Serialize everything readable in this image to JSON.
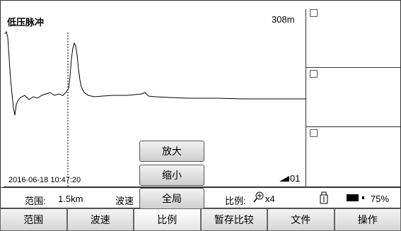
{
  "screen": {
    "mode_label": "低压脉冲",
    "distance": "308m",
    "timestamp": "2016-06-18 10:47:20",
    "marker_label": "01"
  },
  "waveform_panels": [
    {
      "checked": false
    },
    {
      "checked": false
    },
    {
      "checked": false
    }
  ],
  "info_bar": {
    "range_label": "范围:",
    "range_value": "1.5km",
    "speed_label": "波速",
    "scale_label": "比例:",
    "scale_value": "x4",
    "battery_percent": "75%",
    "battery_level": 0.75
  },
  "popup_menu": {
    "zoom_in": "放大",
    "zoom_out": "缩小",
    "fit_all": "全局"
  },
  "bottom_tabs": [
    "范围",
    "波速",
    "比例",
    "暂存比较",
    "文件",
    "操作"
  ]
}
